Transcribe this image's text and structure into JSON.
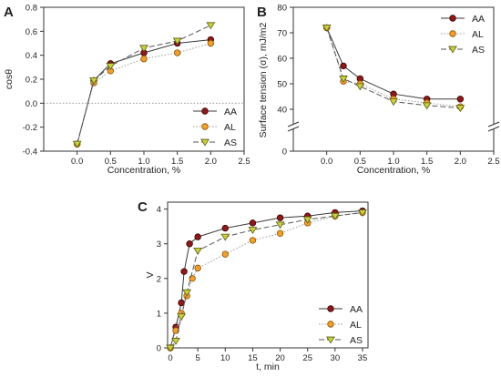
{
  "chart_data": [
    {
      "panel": "A",
      "type": "line",
      "xlabel": "Concentration, %",
      "ylabel": "cosθ",
      "xlim": [
        -0.5,
        2.5
      ],
      "ylim": [
        -0.4,
        0.8
      ],
      "xticks": [
        0.0,
        0.5,
        1.0,
        1.5,
        2.0,
        2.5
      ],
      "yticks": [
        -0.4,
        -0.2,
        0.0,
        0.2,
        0.4,
        0.6,
        0.8
      ],
      "xtick_labels": [
        "0.0",
        "0.5",
        "1.0",
        "1.5",
        "2.0",
        "2.5"
      ],
      "ytick_labels": [
        "-0.4",
        "-0.2",
        "0.0",
        "0.2",
        "0.4",
        "0.6",
        "0.8"
      ],
      "zero_reference_line": true,
      "legend_position": "lower-right",
      "series": [
        {
          "name": "AA",
          "x": [
            0.0,
            0.25,
            0.5,
            1.0,
            1.5,
            2.0
          ],
          "y": [
            -0.34,
            0.19,
            0.33,
            0.42,
            0.5,
            0.53
          ]
        },
        {
          "name": "AL",
          "x": [
            0.0,
            0.25,
            0.5,
            1.0,
            1.5,
            2.0
          ],
          "y": [
            -0.34,
            0.17,
            0.27,
            0.37,
            0.42,
            0.5
          ]
        },
        {
          "name": "AS",
          "x": [
            0.0,
            0.25,
            0.5,
            1.0,
            1.5,
            2.0
          ],
          "y": [
            -0.34,
            0.19,
            0.31,
            0.46,
            0.52,
            0.65
          ]
        }
      ]
    },
    {
      "panel": "B",
      "type": "line",
      "xlabel": "Concentration, %",
      "ylabel": "Surface tension (σ), mJ/m2",
      "xlim": [
        -0.5,
        2.5
      ],
      "y_axis_break": true,
      "xticks": [
        0.0,
        0.5,
        1.0,
        1.5,
        2.0,
        2.5
      ],
      "xtick_labels": [
        "0.0",
        "0.5",
        "1.0",
        "1.5",
        "2.0",
        "2.5"
      ],
      "ytick_labels": [
        "0",
        "40",
        "50",
        "60",
        "70",
        "80"
      ],
      "legend_position": "top-right",
      "series": [
        {
          "name": "AA",
          "x": [
            0.0,
            0.25,
            0.5,
            1.0,
            1.5,
            2.0
          ],
          "y": [
            72,
            57,
            52,
            46,
            44,
            44
          ]
        },
        {
          "name": "AL",
          "x": [
            0.0,
            0.25,
            0.5,
            1.0,
            1.5,
            2.0
          ],
          "y": [
            72,
            51,
            50,
            44,
            42.5,
            41
          ]
        },
        {
          "name": "AS",
          "x": [
            0.0,
            0.25,
            0.5,
            1.0,
            1.5,
            2.0
          ],
          "y": [
            72,
            52,
            49,
            43,
            41.5,
            40.5
          ]
        }
      ]
    },
    {
      "panel": "C",
      "type": "line",
      "xlabel": "t, min",
      "ylabel": "V",
      "xlim": [
        -0.5,
        36
      ],
      "ylim": [
        0,
        4.2
      ],
      "xticks": [
        0,
        5,
        10,
        15,
        20,
        25,
        30,
        35
      ],
      "yticks": [
        0,
        1,
        2,
        3,
        4
      ],
      "xtick_labels": [
        "0",
        "5",
        "10",
        "15",
        "20",
        "25",
        "30",
        "35"
      ],
      "ytick_labels": [
        "0",
        "1",
        "2",
        "3",
        "4"
      ],
      "legend_position": "lower-right",
      "series": [
        {
          "name": "AA",
          "x": [
            0,
            1,
            2,
            2.5,
            3.5,
            5,
            10,
            15,
            20,
            25,
            30,
            35
          ],
          "y": [
            0,
            0.6,
            1.3,
            2.2,
            3.0,
            3.2,
            3.45,
            3.6,
            3.75,
            3.8,
            3.9,
            3.95
          ]
        },
        {
          "name": "AL",
          "x": [
            0,
            1,
            2,
            3,
            4,
            5,
            10,
            15,
            20,
            25,
            30,
            35
          ],
          "y": [
            0,
            0.5,
            1.0,
            1.5,
            2.0,
            2.3,
            2.7,
            3.1,
            3.3,
            3.6,
            3.8,
            3.9
          ]
        },
        {
          "name": "AS",
          "x": [
            0,
            1,
            2,
            3,
            5,
            10,
            15,
            20,
            25,
            30,
            35
          ],
          "y": [
            0,
            0.2,
            0.9,
            1.6,
            2.8,
            3.2,
            3.4,
            3.55,
            3.7,
            3.8,
            3.9
          ]
        }
      ]
    }
  ],
  "series_styles": {
    "AA": {
      "marker": "circle",
      "fill": "#8b1a1a",
      "stroke": "#3d0000",
      "line": "#3a3a3a",
      "dash": "none"
    },
    "AL": {
      "marker": "circle",
      "fill": "#f0a030",
      "stroke": "#8a5200",
      "line": "#9a9a9a",
      "dash": "dotted"
    },
    "AS": {
      "marker": "triangle-down",
      "fill": "#c8d040",
      "stroke": "#5a5a10",
      "line": "#555555",
      "dash": "dashed"
    }
  }
}
